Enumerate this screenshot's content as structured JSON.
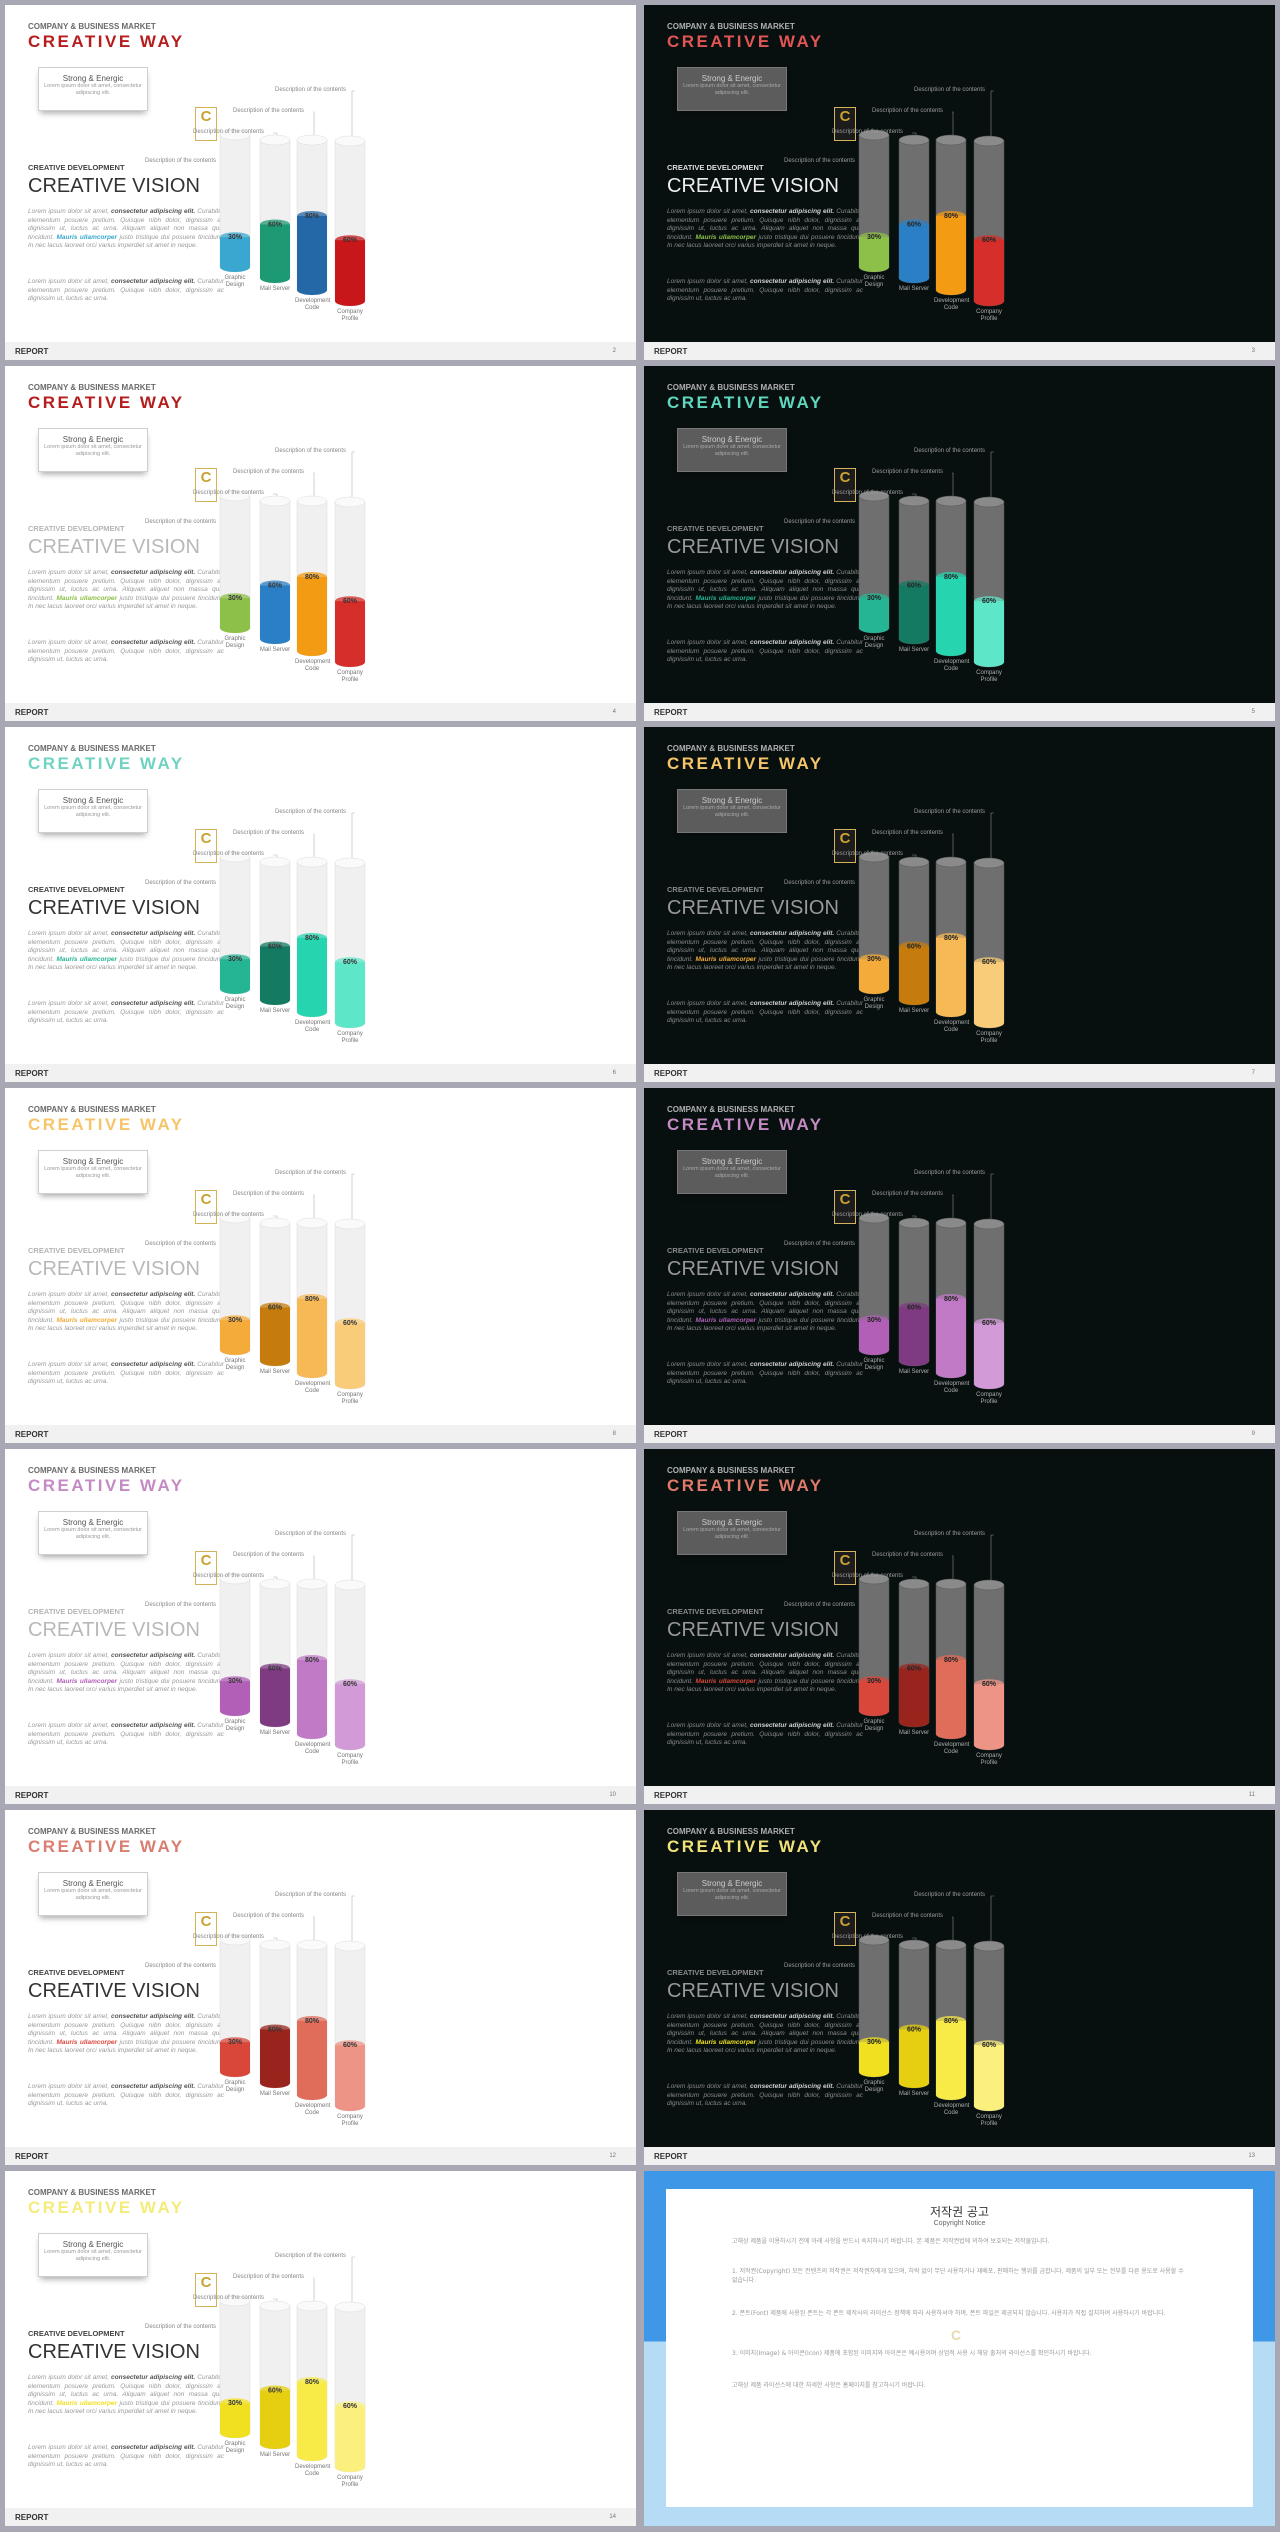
{
  "common": {
    "company": "COMPANY & BUSINESS MARKET",
    "title": "CREATIVE WAY",
    "strong_title": "Strong & Energic",
    "strong_sub": "Lorem ipsum dolor sit amet, consectetur adipiscing elit.",
    "dev": "CREATIVE DEVELOPMENT",
    "vision": "CREATIVE VISION",
    "para1_a": "Lorem ipsum dolor sit amet, ",
    "para1_b": "consectetur adipiscing elit.",
    "para1_c": " Curabitur elementum posuere pretium. Quisque nibh dolor, dignissim ac dignissim ut, luctus ac urna. Aliquam aliquet non massa quis tincidunt. ",
    "para1_d": "Mauris ullamcorper",
    "para1_e": " justo tristique dui posuere tincidunt. In nec lacus laoreet orci varius imperdiet sit amet in neque.",
    "para2_a": "Lorem ipsum dolor sit amet, ",
    "para2_b": "consectetur adipiscing elit.",
    "para2_c": " Curabitur elementum posuere pretium. Quisque nibh dolor, dignissim ac dignissim ut, luctus ac urna.",
    "footer": "REPORT",
    "badge": "C",
    "descriptions": [
      "Description of the contents",
      "Description of the contents",
      "Description of the contents",
      "Description of the contents"
    ]
  },
  "chart_data": {
    "type": "bar",
    "categories": [
      "Graphic Design",
      "Mail Server",
      "Development Code",
      "Company Profile"
    ],
    "values": [
      30,
      60,
      80,
      60
    ],
    "value_labels": [
      "30%",
      "60%",
      "80%",
      "60%"
    ],
    "ylim": [
      0,
      100
    ]
  },
  "slides": [
    {
      "page": "2",
      "theme": "light",
      "muted": false,
      "title_color": "#b71c1c",
      "colors": [
        "#3aa7d0",
        "#1d9a74",
        "#2468a8",
        "#c8171a"
      ]
    },
    {
      "page": "3",
      "theme": "dark",
      "muted": false,
      "title_color": "#e25555",
      "colors": [
        "#8dc049",
        "#2b7fc4",
        "#f39b13",
        "#d62e2a"
      ]
    },
    {
      "page": "4",
      "theme": "light",
      "muted": true,
      "title_color": "#b71c1c",
      "colors": [
        "#8dc049",
        "#2b7fc4",
        "#f39b13",
        "#d62e2a"
      ]
    },
    {
      "page": "5",
      "theme": "dark",
      "muted": true,
      "title_color": "#5fd6bd",
      "colors": [
        "#25b595",
        "#147a62",
        "#26d5b0",
        "#5ee6c8"
      ]
    },
    {
      "page": "6",
      "theme": "light",
      "muted": false,
      "title_color": "#6fd3c2",
      "colors": [
        "#25b595",
        "#147a62",
        "#26d5b0",
        "#5ee6c8"
      ]
    },
    {
      "page": "7",
      "theme": "dark",
      "muted": true,
      "title_color": "#f6c56a",
      "colors": [
        "#f4ab3a",
        "#c57c0c",
        "#f7b955",
        "#f9cc7a"
      ]
    },
    {
      "page": "8",
      "theme": "light",
      "muted": true,
      "title_color": "#f6c56a",
      "colors": [
        "#f4ab3a",
        "#c57c0c",
        "#f7b955",
        "#f9cc7a"
      ]
    },
    {
      "page": "9",
      "theme": "dark",
      "muted": true,
      "title_color": "#c48ac3",
      "colors": [
        "#b15fb7",
        "#7f3b82",
        "#c07ac6",
        "#d29ad6"
      ]
    },
    {
      "page": "10",
      "theme": "light",
      "muted": true,
      "title_color": "#c48ac3",
      "colors": [
        "#b15fb7",
        "#7f3b82",
        "#c07ac6",
        "#d29ad6"
      ]
    },
    {
      "page": "11",
      "theme": "dark",
      "muted": true,
      "title_color": "#e07a6a",
      "colors": [
        "#d9473b",
        "#99241d",
        "#e06c5a",
        "#ee9487"
      ]
    },
    {
      "page": "12",
      "theme": "light",
      "muted": false,
      "title_color": "#d97d70",
      "colors": [
        "#d9473b",
        "#99241d",
        "#e06c5a",
        "#ee9487"
      ]
    },
    {
      "page": "13",
      "theme": "dark",
      "muted": true,
      "title_color": "#f2e27a",
      "colors": [
        "#f0e020",
        "#e6cf10",
        "#f8eb48",
        "#fbf07e"
      ]
    },
    {
      "page": "14",
      "theme": "light",
      "muted": false,
      "title_color": "#f4ec7a",
      "colors": [
        "#f0e020",
        "#e6cf10",
        "#f8eb48",
        "#fbf07e"
      ]
    }
  ],
  "notice": {
    "title": "저작권 공고",
    "subtitle": "Copyright Notice",
    "badge": "C",
    "paragraphs": [
      "고해상 제품을 이용하시기 전에 아래 사항을 반드시 숙지하시기 바랍니다. 본 제품은 저작권법에 의하여 보호되는 저작물입니다.",
      "1. 저작권(Copyright) 모든 컨텐츠의 저작권은 저작권자에게 있으며, 허락 없이 무단 사용하거나 재배포, 판매하는 행위를 금합니다. 제품의 일부 또는 전부를 다른 용도로 사용할 수 없습니다.",
      "2. 폰트(Font) 제품에 사용된 폰트는 각 폰트 제작사의 라이선스 정책에 따라 사용하셔야 하며, 폰트 파일은 제공되지 않습니다. 사용자가 직접 설치하여 사용하시기 바랍니다.",
      "3. 이미지(Image) & 아이콘(Icon) 제품에 포함된 이미지와 아이콘은 예시용이며 상업적 사용 시 해당 출처의 라이선스를 확인하시기 바랍니다.",
      "고해상 제품 라이선스에 대한 자세한 사항은 홈페이지를 참고하시기 바랍니다."
    ]
  }
}
